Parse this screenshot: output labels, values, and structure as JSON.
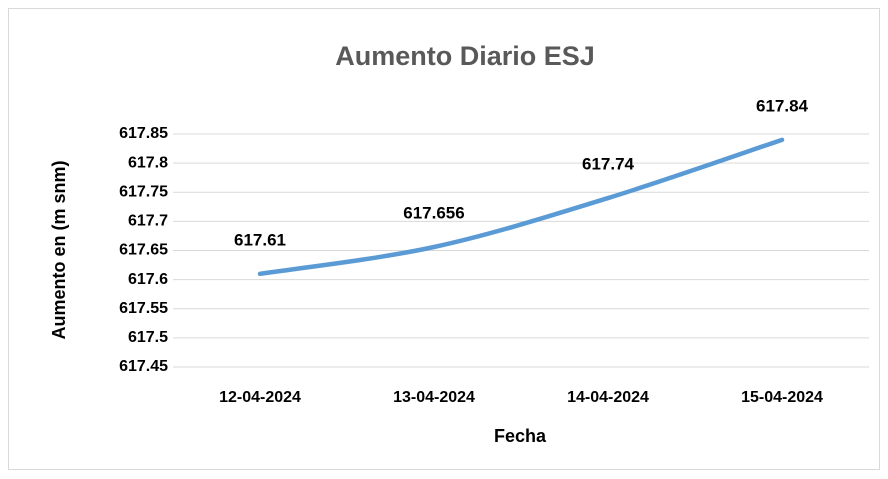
{
  "chart_data": {
    "type": "line",
    "title": "Aumento Diario ESJ",
    "x_label": "Fecha",
    "y_label": "Aumento en (m snm)",
    "categories": [
      "12-04-2024",
      "13-04-2024",
      "14-04-2024",
      "15-04-2024"
    ],
    "values": [
      617.61,
      617.656,
      617.74,
      617.84
    ],
    "color": "#5b9bd5",
    "smooth": true,
    "data_labels": true,
    "ylim": [
      617.45,
      617.85
    ],
    "yticks": [
      617.45,
      617.5,
      617.55,
      617.6,
      617.65,
      617.7,
      617.75,
      617.8,
      617.85
    ],
    "grid": true
  }
}
